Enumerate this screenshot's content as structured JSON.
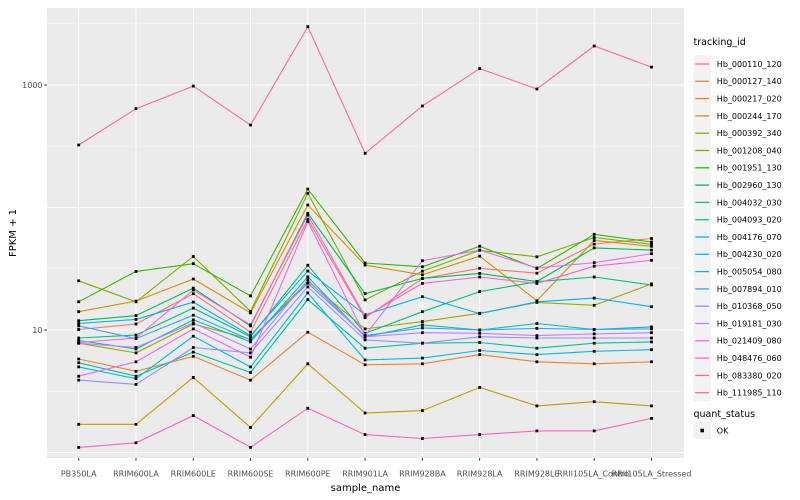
{
  "chart_data": {
    "type": "line",
    "title": "",
    "xlabel": "sample_name",
    "ylabel": "FPKM + 1",
    "y_scale": "log10",
    "ylim": [
      0.9,
      4300
    ],
    "grid_major_y": [
      1,
      10,
      100,
      1000
    ],
    "y_ticks": [
      {
        "label": "10",
        "value": 10
      },
      {
        "label": "1000",
        "value": 1000
      }
    ],
    "panel_bg": "#EBEBEB",
    "gridline_color": "#FFFFFF",
    "point_color": "#000000",
    "categories": [
      "PB350LA",
      "RRIM600LA",
      "RRIM600LE",
      "RRIM600SE",
      "RRIM600PE",
      "RRIM901LA",
      "RRIM928BA",
      "RRIM928LA",
      "RRIM928LE",
      "RRII105LA_Control",
      "RRII105LA_Stressed"
    ],
    "series": [
      {
        "name": "Hb_000110_120",
        "color": "#F8766D",
        "values": [
          10.1,
          11.2,
          19.8,
          9.6,
          79.9,
          12.6,
          26.3,
          31.9,
          29.1,
          50.3,
          55.8
        ]
      },
      {
        "name": "Hb_000127_140",
        "color": "#EA8331",
        "values": [
          5.8,
          4.6,
          6.1,
          3.9,
          9.6,
          5.2,
          5.3,
          6.3,
          5.5,
          5.3,
          5.5
        ]
      },
      {
        "name": "Hb_000217_020",
        "color": "#D89000",
        "values": [
          14.1,
          17.2,
          26.1,
          13.8,
          104.8,
          33.9,
          28.2,
          40.1,
          17.3,
          53.8,
          48.2
        ]
      },
      {
        "name": "Hb_000244_170",
        "color": "#C09B00",
        "values": [
          1.7,
          1.7,
          4.1,
          1.6,
          5.3,
          2.1,
          2.2,
          3.4,
          2.4,
          2.6,
          2.4
        ]
      },
      {
        "name": "Hb_000392_340",
        "color": "#A3A500",
        "values": [
          7.8,
          6.5,
          11.2,
          8.4,
          24.9,
          10.2,
          11.7,
          13.7,
          16.8,
          15.9,
          23.8
        ]
      },
      {
        "name": "Hb_001208_040",
        "color": "#7CAE00",
        "values": [
          25.2,
          17.0,
          39.8,
          14.2,
          130.5,
          17.6,
          30.2,
          44.7,
          39.6,
          56.9,
          50.1
        ]
      },
      {
        "name": "Hb_001951_130",
        "color": "#39B600",
        "values": [
          17.0,
          30.1,
          34.8,
          19.0,
          141.2,
          35.2,
          32.8,
          48.3,
          31.8,
          60.4,
          52.3
        ]
      },
      {
        "name": "Hb_002960_130",
        "color": "#00BB4E",
        "values": [
          11.9,
          13.1,
          22.0,
          10.8,
          89.7,
          19.8,
          26.4,
          29.0,
          24.9,
          46.8,
          44.9
        ]
      },
      {
        "name": "Hb_004032_030",
        "color": "#00BF7D",
        "values": [
          8.6,
          9.1,
          15.1,
          8.8,
          33.8,
          9.4,
          14.1,
          20.6,
          24.8,
          27.1,
          23.3
        ]
      },
      {
        "name": "Hb_004093_020",
        "color": "#00C1A3",
        "values": [
          5.4,
          4.2,
          6.6,
          4.5,
          17.7,
          7.1,
          7.8,
          7.9,
          7.1,
          7.8,
          8.0
        ]
      },
      {
        "name": "Hb_004176_070",
        "color": "#00BFC4",
        "values": [
          8.2,
          7.0,
          12.1,
          8.0,
          27.2,
          8.8,
          11.0,
          10.0,
          11.3,
          10.1,
          10.6
        ]
      },
      {
        "name": "Hb_004230_020",
        "color": "#00BAE0",
        "values": [
          5.0,
          4.0,
          8.9,
          5.0,
          20.1,
          5.7,
          5.9,
          6.8,
          6.3,
          6.7,
          6.9
        ]
      },
      {
        "name": "Hb_005054_080",
        "color": "#00B0F6",
        "values": [
          11.3,
          12.2,
          16.9,
          9.0,
          30.3,
          13.3,
          18.7,
          13.6,
          17.0,
          18.2,
          15.5
        ]
      },
      {
        "name": "Hb_007894_010",
        "color": "#35A2FF",
        "values": [
          10.8,
          8.5,
          13.2,
          8.3,
          24.1,
          9.0,
          10.4,
          10.0,
          10.3,
          10.1,
          10.2
        ]
      },
      {
        "name": "Hb_010368_050",
        "color": "#9590FF",
        "values": [
          3.9,
          3.6,
          7.2,
          6.5,
          22.5,
          8.3,
          7.8,
          8.8,
          8.6,
          8.6,
          8.6
        ]
      },
      {
        "name": "Hb_019181_030",
        "color": "#C77CFF",
        "values": [
          7.8,
          7.2,
          11.4,
          7.0,
          25.7,
          8.8,
          9.5,
          9.4,
          9.0,
          9.3,
          9.5
        ]
      },
      {
        "name": "Hb_021409_080",
        "color": "#E76BF3",
        "values": [
          4.2,
          5.5,
          10.2,
          6.0,
          76.8,
          9.0,
          36.8,
          44.9,
          32.1,
          35.4,
          42.0
        ]
      },
      {
        "name": "Hb_048476_060",
        "color": "#FA62DB",
        "values": [
          7.9,
          8.6,
          21.2,
          11.0,
          86.7,
          12.9,
          24.0,
          27.1,
          24.0,
          33.2,
          37.1
        ]
      },
      {
        "name": "Hb_083380_020",
        "color": "#FF62BC",
        "values": [
          1.1,
          1.2,
          2.0,
          1.1,
          2.3,
          1.4,
          1.3,
          1.4,
          1.5,
          1.5,
          1.9
        ]
      },
      {
        "name": "Hb_111985_110",
        "color": "#FF6A98",
        "values": [
          324,
          641,
          980,
          471,
          2990,
          277,
          674,
          1360,
          927,
          2080,
          1400
        ]
      }
    ],
    "legend_position": "right"
  },
  "legend_tracking": {
    "title": "tracking_id"
  },
  "legend_quant": {
    "title": "quant_status",
    "items": [
      {
        "label": "OK"
      }
    ]
  }
}
